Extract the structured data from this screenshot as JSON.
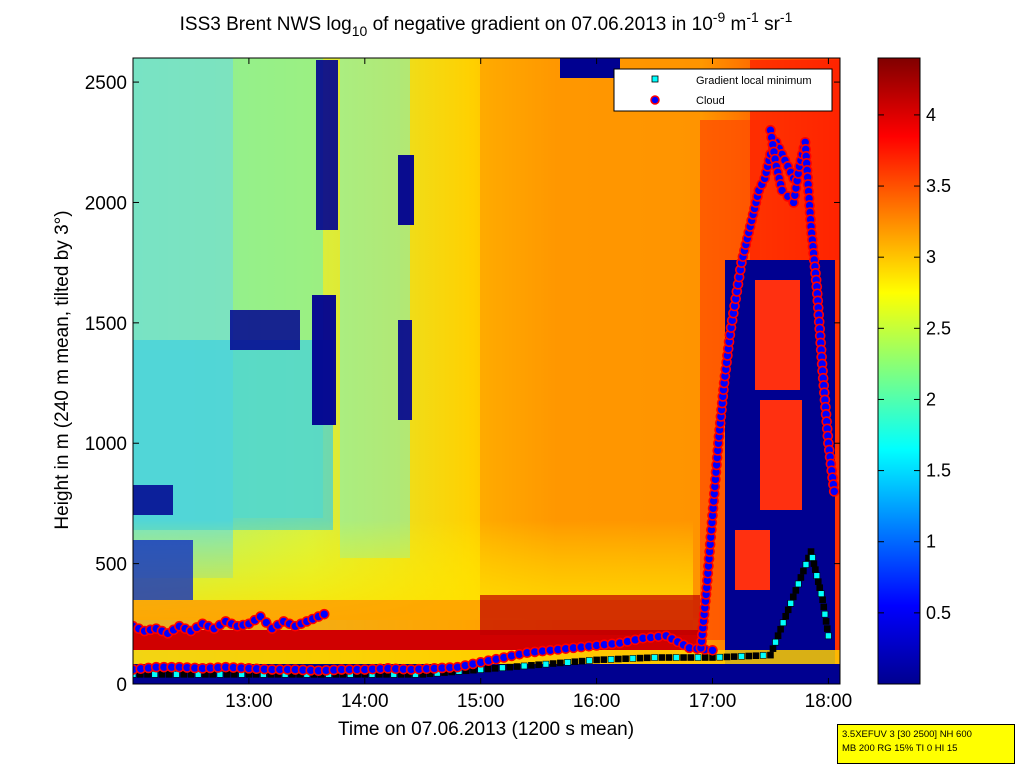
{
  "colors": {
    "background": "#ffffff",
    "axis": "#000000",
    "cloud_marker_fill": "#0000ff",
    "cloud_marker_edge": "#ff0000",
    "cloud_marker_outline": "#ffffff",
    "gradient_marker": "#00ffff",
    "colormap": "jet"
  },
  "chart_data": {
    "type": "heatmap",
    "title_parts": {
      "prefix": "ISS3 Brent NWS log",
      "sub": "10",
      "mid": " of negative gradient on 07.06.2013 in 10",
      "sup1": "-9",
      "mid2": " m",
      "sup2": "-1",
      "mid3": " sr",
      "sup3": "-1"
    },
    "xlabel": "Time on 07.06.2013 (1200 s mean)",
    "ylabel": "Height in m (240 m mean, tilted by 3°)",
    "x_range_hours": [
      12.0,
      18.1
    ],
    "ylim": [
      0,
      2600
    ],
    "x_ticks": [
      {
        "value": 13,
        "label": "13:00"
      },
      {
        "value": 14,
        "label": "14:00"
      },
      {
        "value": 15,
        "label": "15:00"
      },
      {
        "value": 16,
        "label": "16:00"
      },
      {
        "value": 17,
        "label": "17:00"
      },
      {
        "value": 18,
        "label": "18:00"
      }
    ],
    "y_ticks": [
      {
        "value": 0,
        "label": "0"
      },
      {
        "value": 500,
        "label": "500"
      },
      {
        "value": 1000,
        "label": "1000"
      },
      {
        "value": 1500,
        "label": "1500"
      },
      {
        "value": 2000,
        "label": "2000"
      },
      {
        "value": 2500,
        "label": "2500"
      }
    ],
    "colorbar": {
      "range": [
        0,
        4.4
      ],
      "ticks": [
        {
          "value": 0.5,
          "label": "0.5"
        },
        {
          "value": 1,
          "label": "1"
        },
        {
          "value": 1.5,
          "label": "1.5"
        },
        {
          "value": 2,
          "label": "2"
        },
        {
          "value": 2.5,
          "label": "2.5"
        },
        {
          "value": 3,
          "label": "3"
        },
        {
          "value": 3.5,
          "label": "3.5"
        },
        {
          "value": 4,
          "label": "4"
        }
      ]
    },
    "legend": {
      "position": "top-right",
      "entries": [
        {
          "label": "Gradient local minimum",
          "marker": "square",
          "color": "#00ffff"
        },
        {
          "label": "Cloud",
          "marker": "circle",
          "color": "#0000ff"
        }
      ]
    },
    "cloud_series": [
      {
        "x": [
          12.0,
          12.2,
          12.4,
          12.6,
          12.8,
          13.0,
          13.2,
          13.4,
          13.6,
          13.8,
          14.0,
          14.2,
          14.4,
          14.6,
          14.8,
          15.0,
          15.2,
          15.4,
          15.6,
          15.8,
          16.0,
          16.2,
          16.4,
          16.6,
          16.8,
          17.0
        ],
        "y": [
          60,
          70,
          70,
          65,
          70,
          65,
          60,
          60,
          55,
          60,
          60,
          65,
          60,
          65,
          70,
          90,
          110,
          130,
          140,
          150,
          160,
          170,
          190,
          200,
          150,
          140
        ]
      },
      {
        "x": [
          12.0,
          12.1,
          12.2,
          12.3,
          12.4,
          12.5,
          12.6,
          12.7,
          12.8,
          12.9,
          13.0,
          13.1,
          13.2,
          13.3,
          13.4,
          13.5,
          13.65
        ],
        "y": [
          240,
          220,
          230,
          210,
          240,
          220,
          250,
          230,
          260,
          240,
          250,
          280,
          230,
          260,
          240,
          260,
          290
        ]
      },
      {
        "x": [
          16.9,
          16.95,
          17.0,
          17.05,
          17.1,
          17.15,
          17.2,
          17.25,
          17.3,
          17.35,
          17.4,
          17.45,
          17.5,
          17.55,
          17.6,
          17.65,
          17.7
        ],
        "y": [
          150,
          400,
          700,
          1000,
          1250,
          1450,
          1600,
          1750,
          1850,
          1950,
          2050,
          2100,
          2200,
          2250,
          2200,
          2150,
          2100
        ]
      },
      {
        "x": [
          17.5,
          17.55,
          17.6,
          17.7,
          17.75,
          17.8,
          17.85,
          17.9,
          17.95,
          18.0,
          18.05
        ],
        "y": [
          2300,
          2150,
          2050,
          2000,
          2150,
          2250,
          1900,
          1650,
          1300,
          1000,
          800
        ]
      }
    ],
    "gradient_min_series": {
      "x": [
        12.0,
        12.5,
        13.0,
        13.5,
        14.0,
        14.5,
        15.0,
        15.5,
        16.0,
        16.5,
        17.0,
        17.5,
        17.85,
        17.9,
        17.95,
        18.0
      ],
      "y": [
        40,
        40,
        40,
        40,
        40,
        40,
        60,
        80,
        100,
        110,
        110,
        120,
        550,
        450,
        350,
        200
      ]
    }
  },
  "info_box": {
    "line1": "3.5XEFUV 3 [30 2500] NH 600",
    "line2": "MB 200 RG 15% TI 0 HI 15"
  }
}
